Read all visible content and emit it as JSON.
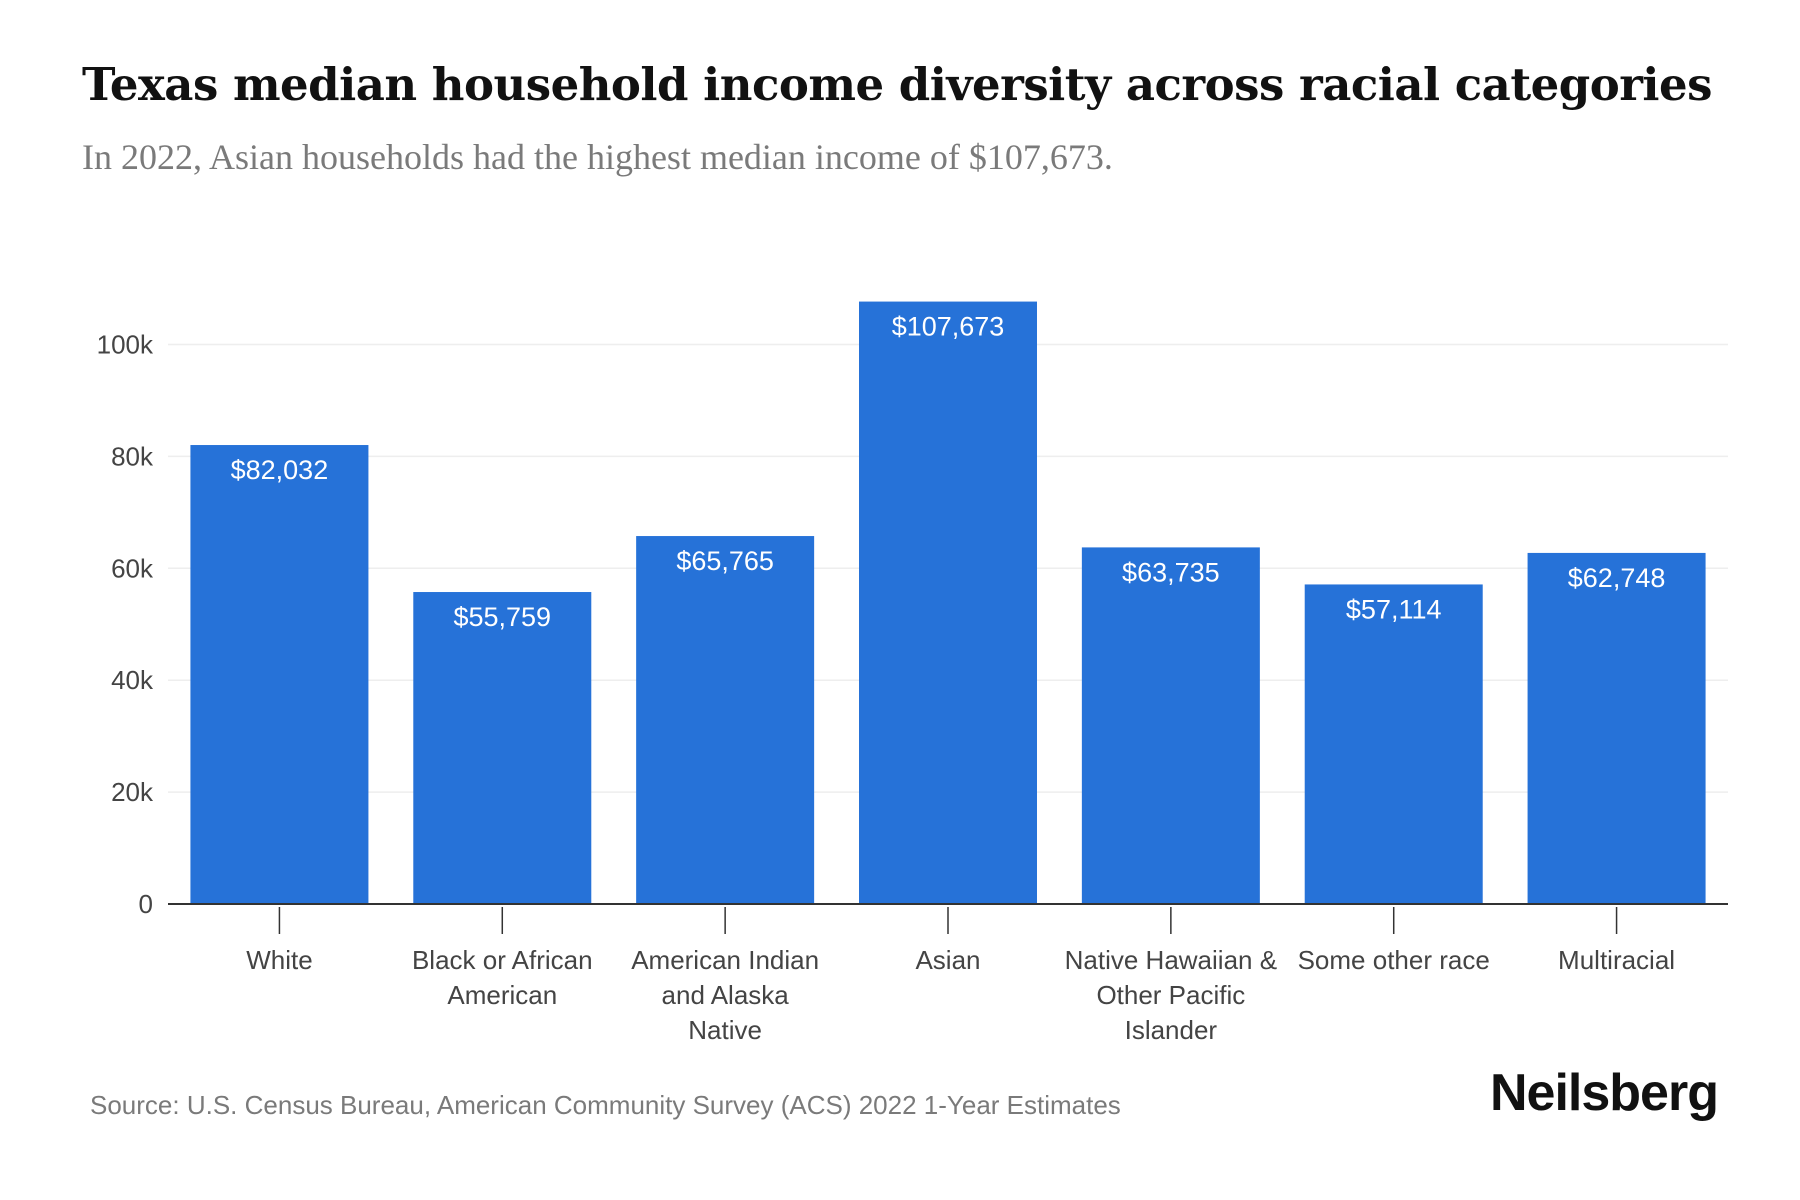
{
  "header": {
    "title": "Texas median household income diversity across racial categories",
    "subtitle": "In 2022, Asian households had the highest median income of $107,673."
  },
  "chart_data": {
    "type": "bar",
    "categories": [
      "White",
      "Black or African American",
      "American Indian and Alaska Native",
      "Asian",
      "Native Hawaiian & Other Pacific Islander",
      "Some other race",
      "Multiracial"
    ],
    "category_lines": [
      [
        "White"
      ],
      [
        "Black or African",
        "American"
      ],
      [
        "American Indian",
        "and Alaska",
        "Native"
      ],
      [
        "Asian"
      ],
      [
        "Native Hawaiian &",
        "Other Pacific",
        "Islander"
      ],
      [
        "Some other race"
      ],
      [
        "Multiracial"
      ]
    ],
    "values": [
      82032,
      55759,
      65765,
      107673,
      63735,
      57114,
      62748
    ],
    "data_labels": [
      "$82,032",
      "$55,759",
      "$65,765",
      "$107,673",
      "$63,735",
      "$57,114",
      "$62,748"
    ],
    "yticks": [
      0,
      20000,
      40000,
      60000,
      80000,
      100000
    ],
    "ytick_labels": [
      "0",
      "20k",
      "40k",
      "60k",
      "80k",
      "100k"
    ],
    "ylim": [
      0,
      110000
    ],
    "grid": true,
    "bar_color": "#2672d8",
    "grid_color": "#eeeeee",
    "axis_color": "#333333"
  },
  "footer": {
    "source": "Source: U.S. Census Bureau, American Community Survey (ACS) 2022 1-Year Estimates",
    "brand": "Neilsberg"
  }
}
